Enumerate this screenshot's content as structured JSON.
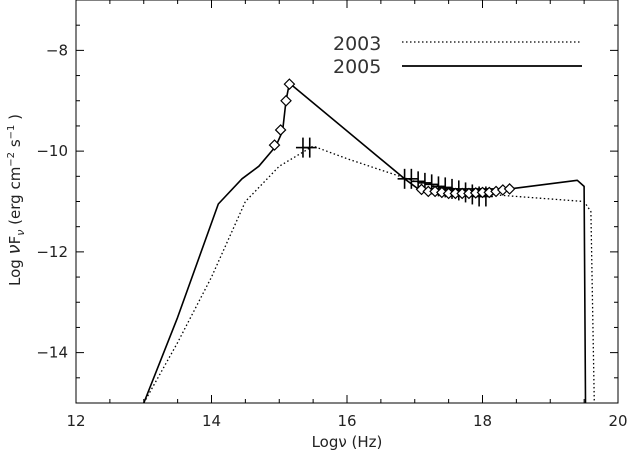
{
  "chart_data": {
    "type": "line",
    "title": "",
    "xlabel": "Logν (Hz)",
    "ylabel_parts": {
      "prefix": "Log  ",
      "nu": "ν",
      "F": "F",
      "F_sub": "ν",
      "unit_open": " (erg cm",
      "cm_exp": "−2",
      "s": " s",
      "s_exp": "−1",
      "unit_close": " )"
    },
    "xlim": [
      12,
      20
    ],
    "ylim": [
      -15,
      -7
    ],
    "x_ticks": [
      12,
      14,
      16,
      18,
      20
    ],
    "y_ticks": [
      -8,
      -10,
      -12,
      -14
    ],
    "x_tick_labels": [
      "12",
      "14",
      "16",
      "18",
      "20"
    ],
    "y_tick_labels": [
      "−8",
      "−10",
      "−12",
      "−14"
    ],
    "legend": {
      "placement": "top-right"
    },
    "series": [
      {
        "name": "2003",
        "style": "dotted",
        "color": "#000000",
        "points": [
          [
            13.0,
            -15.0
          ],
          [
            13.5,
            -13.8
          ],
          [
            14.0,
            -12.5
          ],
          [
            14.5,
            -11.0
          ],
          [
            15.0,
            -10.3
          ],
          [
            15.5,
            -9.9
          ],
          [
            16.0,
            -10.15
          ],
          [
            17.0,
            -10.6
          ],
          [
            18.0,
            -10.85
          ],
          [
            19.5,
            -11.0
          ],
          [
            19.6,
            -11.2
          ],
          [
            19.65,
            -15.0
          ]
        ],
        "markers": {
          "symbol": "plus",
          "points": [
            [
              15.35,
              -9.93
            ],
            [
              15.45,
              -9.93
            ],
            [
              16.85,
              -10.55
            ],
            [
              16.95,
              -10.55
            ],
            [
              17.05,
              -10.6
            ],
            [
              17.15,
              -10.63
            ],
            [
              17.25,
              -10.66
            ],
            [
              17.35,
              -10.7
            ],
            [
              17.45,
              -10.72
            ],
            [
              17.55,
              -10.75
            ],
            [
              17.65,
              -10.78
            ],
            [
              17.75,
              -10.82
            ],
            [
              17.85,
              -10.86
            ],
            [
              17.95,
              -10.9
            ],
            [
              18.05,
              -10.9
            ]
          ]
        }
      },
      {
        "name": "2005",
        "style": "solid",
        "color": "#000000",
        "points": [
          [
            13.0,
            -15.0
          ],
          [
            13.5,
            -13.3
          ],
          [
            14.1,
            -11.05
          ],
          [
            14.45,
            -10.55
          ],
          [
            14.7,
            -10.3
          ],
          [
            14.95,
            -9.9
          ],
          [
            15.05,
            -9.6
          ],
          [
            15.1,
            -9.0
          ],
          [
            15.15,
            -8.65
          ],
          [
            16.85,
            -10.55
          ],
          [
            17.05,
            -10.75
          ],
          [
            18.4,
            -10.75
          ],
          [
            19.4,
            -10.58
          ],
          [
            19.5,
            -10.7
          ],
          [
            19.52,
            -15.0
          ]
        ],
        "markers": {
          "symbol": "diamond",
          "points": [
            [
              14.93,
              -9.88
            ],
            [
              15.02,
              -9.58
            ],
            [
              15.1,
              -9.0
            ],
            [
              15.15,
              -8.67
            ],
            [
              17.1,
              -10.76
            ],
            [
              17.2,
              -10.8
            ],
            [
              17.3,
              -10.8
            ],
            [
              17.4,
              -10.82
            ],
            [
              17.5,
              -10.84
            ],
            [
              17.6,
              -10.84
            ],
            [
              17.7,
              -10.84
            ],
            [
              17.8,
              -10.84
            ],
            [
              17.9,
              -10.83
            ],
            [
              18.0,
              -10.82
            ],
            [
              18.1,
              -10.82
            ],
            [
              18.2,
              -10.8
            ],
            [
              18.3,
              -10.77
            ],
            [
              18.4,
              -10.75
            ]
          ]
        }
      }
    ]
  }
}
